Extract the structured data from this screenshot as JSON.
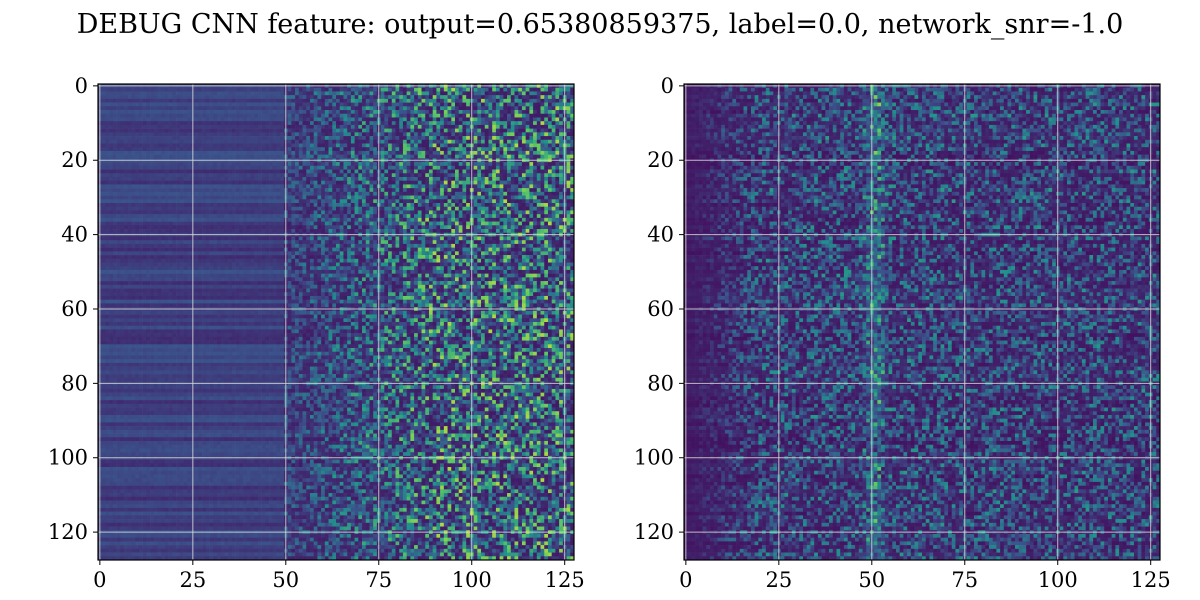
{
  "chart_data": {
    "type": "heatmap",
    "title": "DEBUG CNN feature: output=0.65380859375, label=0.0, network_snr=-1.0",
    "colormap": "viridis",
    "grid": true,
    "panels": [
      {
        "name": "",
        "rows": 128,
        "cols": 128,
        "xlim": [
          0,
          127
        ],
        "ylim": [
          127,
          0
        ],
        "xticks": [
          "0",
          "25",
          "50",
          "75",
          "100",
          "125"
        ],
        "yticks": [
          "0",
          "20",
          "40",
          "60",
          "80",
          "100",
          "120"
        ],
        "pattern": "left-smooth-right-noisy"
      },
      {
        "name": "",
        "rows": 128,
        "cols": 128,
        "xlim": [
          0,
          127
        ],
        "ylim": [
          127,
          0
        ],
        "xticks": [
          "0",
          "25",
          "50",
          "75",
          "100",
          "125"
        ],
        "yticks": [
          "0",
          "20",
          "40",
          "60",
          "80",
          "100",
          "120"
        ],
        "pattern": "ridge-near-50-noisy"
      }
    ]
  }
}
